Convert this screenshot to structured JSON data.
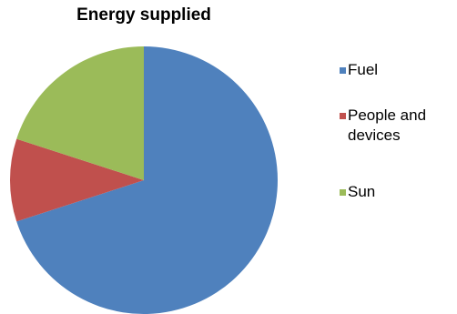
{
  "chart_data": {
    "type": "pie",
    "title": "Energy supplied",
    "categories": [
      "Fuel",
      "People and devices",
      "Sun"
    ],
    "values": [
      70,
      10,
      20
    ],
    "colors": [
      "#4f81bd",
      "#c0504d",
      "#9bbb59"
    ],
    "start_angle_deg": 0,
    "direction": "clockwise",
    "legend_position": "right"
  },
  "legend": {
    "items": [
      {
        "label": "Fuel",
        "color": "#4f81bd"
      },
      {
        "label": "People and devices",
        "color": "#c0504d"
      },
      {
        "label": "Sun",
        "color": "#9bbb59"
      }
    ]
  }
}
